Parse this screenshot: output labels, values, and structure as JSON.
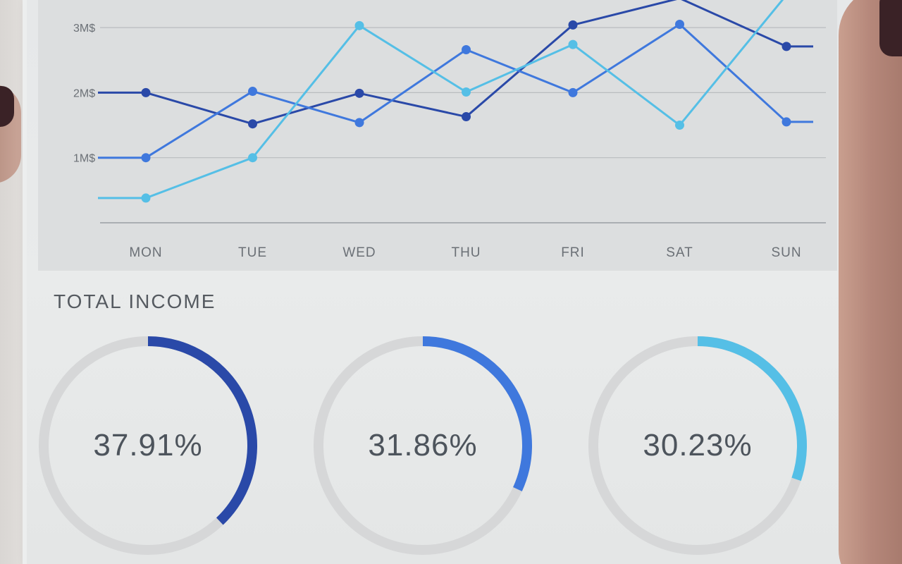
{
  "chart_data": [
    {
      "type": "line",
      "categories": [
        "MON",
        "TUE",
        "WED",
        "THU",
        "FRI",
        "SAT",
        "SUN"
      ],
      "yticks": [
        "1M$",
        "2M$",
        "3M$"
      ],
      "ylim": [
        0,
        3.3
      ],
      "grid": true,
      "series": [
        {
          "color": "#2a49a8",
          "values": [
            2.0,
            1.52,
            1.99,
            1.63,
            3.04,
            3.45,
            2.71
          ]
        },
        {
          "color": "#3f78dd",
          "values": [
            1.0,
            2.02,
            1.54,
            2.66,
            2.0,
            3.05,
            1.55
          ]
        },
        {
          "color": "#55bfe6",
          "values": [
            0.38,
            1.0,
            3.03,
            2.01,
            2.74,
            1.5,
            3.5
          ]
        }
      ]
    },
    {
      "type": "pie",
      "title": "TOTAL INCOME",
      "slices": [
        {
          "label": "37.91%",
          "value": 37.91,
          "color": "#2a49a8"
        },
        {
          "label": "31.86%",
          "value": 31.86,
          "color": "#3f78dd"
        },
        {
          "label": "30.23%",
          "value": 30.23,
          "color": "#55bfe6"
        }
      ]
    }
  ],
  "income": {
    "title": "TOTAL INCOME",
    "rings": [
      {
        "label": "37.91%",
        "value": 37.91,
        "color": "#2a49a8"
      },
      {
        "label": "31.86%",
        "value": 31.86,
        "color": "#3f78dd"
      },
      {
        "label": "30.23%",
        "value": 30.23,
        "color": "#55bfe6"
      }
    ]
  },
  "colors": {
    "track": "#d6d7d8",
    "grid": "#b9bcbf",
    "tick_text": "#6b7076"
  }
}
